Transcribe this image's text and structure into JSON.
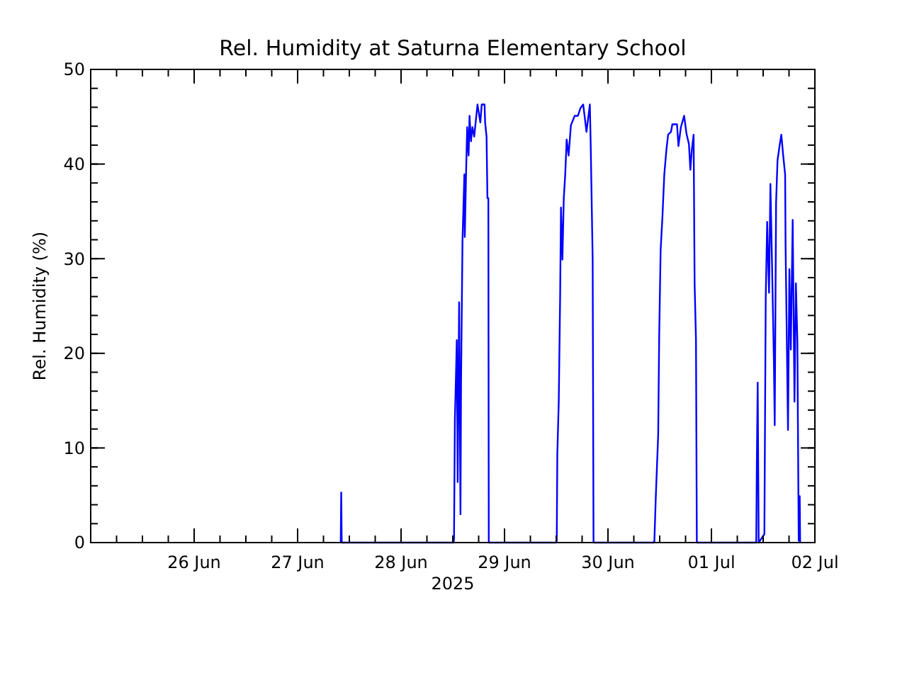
{
  "chart_data": {
    "type": "line",
    "title": "Rel. Humidity at Saturna Elementary School",
    "xlabel": "2025",
    "ylabel": "Rel. Humidity (%)",
    "xlim": [
      "2025-06-25",
      "2025-07-02"
    ],
    "xticks": [
      {
        "value": "2025-06-26",
        "label": "26 Jun"
      },
      {
        "value": "2025-06-27",
        "label": "27 Jun"
      },
      {
        "value": "2025-06-28",
        "label": "28 Jun"
      },
      {
        "value": "2025-06-29",
        "label": "29 Jun"
      },
      {
        "value": "2025-06-30",
        "label": "30 Jun"
      },
      {
        "value": "2025-07-01",
        "label": "01 Jul"
      },
      {
        "value": "2025-07-02",
        "label": "02 Jul"
      }
    ],
    "ylim": [
      0,
      50
    ],
    "yticks": [
      0,
      10,
      20,
      30,
      40,
      50
    ],
    "grid": false,
    "marker": "none",
    "line_style": "solid",
    "series": [
      {
        "color": "#0000ff",
        "x": [
          "2025-06-27T10:00",
          "2025-06-27T10:07",
          "2025-06-27T10:14",
          "2025-06-28T12:10",
          "2025-06-28T12:17",
          "2025-06-28T12:29",
          "2025-06-28T12:56",
          "2025-06-28T13:08",
          "2025-06-28T13:28",
          "2025-06-28T13:47",
          "2025-06-28T13:55",
          "2025-06-28T14:07",
          "2025-06-28T14:15",
          "2025-06-28T14:41",
          "2025-06-28T14:47",
          "2025-06-28T15:06",
          "2025-06-28T15:20",
          "2025-06-28T15:40",
          "2025-06-28T15:53",
          "2025-06-28T16:13",
          "2025-06-28T16:33",
          "2025-06-28T16:58",
          "2025-06-28T17:18",
          "2025-06-28T17:44",
          "2025-06-28T18:23",
          "2025-06-28T18:43",
          "2025-06-28T19:22",
          "2025-06-28T19:30",
          "2025-06-28T19:50",
          "2025-06-28T20:02",
          "2025-06-28T20:15",
          "2025-06-28T20:21",
          "2025-06-29T12:00",
          "2025-06-29T12:07",
          "2025-06-29T12:15",
          "2025-06-29T12:35",
          "2025-06-29T12:54",
          "2025-06-29T13:06",
          "2025-06-29T13:26",
          "2025-06-29T13:45",
          "2025-06-29T14:05",
          "2025-06-29T14:25",
          "2025-06-29T14:52",
          "2025-06-29T15:24",
          "2025-06-29T16:17",
          "2025-06-29T17:02",
          "2025-06-29T17:36",
          "2025-06-29T18:15",
          "2025-06-29T19:01",
          "2025-06-29T19:48",
          "2025-06-29T20:00",
          "2025-06-29T20:27",
          "2025-06-29T20:39",
          "2025-06-30T10:40",
          "2025-06-30T10:46",
          "2025-06-30T11:06",
          "2025-06-30T11:39",
          "2025-06-30T11:53",
          "2025-06-30T12:13",
          "2025-06-30T12:38",
          "2025-06-30T13:04",
          "2025-06-30T13:32",
          "2025-06-30T13:57",
          "2025-06-30T14:37",
          "2025-06-30T14:56",
          "2025-06-30T16:01",
          "2025-06-30T16:21",
          "2025-06-30T16:55",
          "2025-06-30T17:40",
          "2025-06-30T18:13",
          "2025-06-30T18:47",
          "2025-06-30T19:07",
          "2025-06-30T19:26",
          "2025-06-30T19:52",
          "2025-06-30T20:06",
          "2025-06-30T20:25",
          "2025-06-30T20:37",
          "2025-07-01T10:20",
          "2025-07-01T10:24",
          "2025-07-01T10:32",
          "2025-07-01T10:44",
          "2025-07-01T10:58",
          "2025-07-01T12:17",
          "2025-07-01T12:36",
          "2025-07-01T12:56",
          "2025-07-01T13:22",
          "2025-07-01T13:41",
          "2025-07-01T14:01",
          "2025-07-01T14:29",
          "2025-07-01T14:41",
          "2025-07-01T15:00",
          "2025-07-01T15:20",
          "2025-07-01T15:48",
          "2025-07-01T16:13",
          "2025-07-01T16:39",
          "2025-07-01T17:06",
          "2025-07-01T17:12",
          "2025-07-01T17:46",
          "2025-07-01T18:05",
          "2025-07-01T18:25",
          "2025-07-01T18:51",
          "2025-07-01T19:16",
          "2025-07-01T19:36",
          "2025-07-01T19:56",
          "2025-07-01T20:15",
          "2025-07-01T20:29",
          "2025-07-01T20:35"
        ],
        "values": [
          0,
          5.3,
          0,
          0,
          0.4,
          12.9,
          21.4,
          6.4,
          25.4,
          3,
          16.9,
          25.9,
          31.9,
          38.9,
          32.3,
          39.4,
          43.9,
          40.9,
          45.1,
          42.4,
          43.9,
          42.9,
          44.4,
          46.3,
          44.4,
          46.3,
          46.3,
          44.4,
          42.9,
          36.4,
          36.4,
          0,
          0,
          0.2,
          9.4,
          14.9,
          25.9,
          35.4,
          29.9,
          36.4,
          38.9,
          42.6,
          40.9,
          44.1,
          45.1,
          45.1,
          45.9,
          46.3,
          43.4,
          46.3,
          41.9,
          29.9,
          0,
          0,
          0.2,
          4.9,
          11.4,
          21.9,
          30.9,
          34.4,
          38.9,
          41.4,
          43.1,
          43.4,
          44.2,
          44.2,
          41.9,
          43.9,
          45.1,
          43.2,
          42.1,
          39.4,
          41.4,
          43.1,
          27.4,
          21.4,
          0,
          0,
          0.2,
          8.4,
          16.9,
          0,
          0.9,
          25.9,
          33.9,
          26.4,
          37.9,
          30.4,
          19.4,
          12.4,
          35.9,
          40.4,
          41.9,
          43.1,
          40.9,
          38.9,
          31.4,
          11.9,
          28.9,
          20.4,
          34.1,
          14.9,
          27.4,
          21.4,
          0.2,
          4.9,
          0
        ]
      }
    ]
  }
}
